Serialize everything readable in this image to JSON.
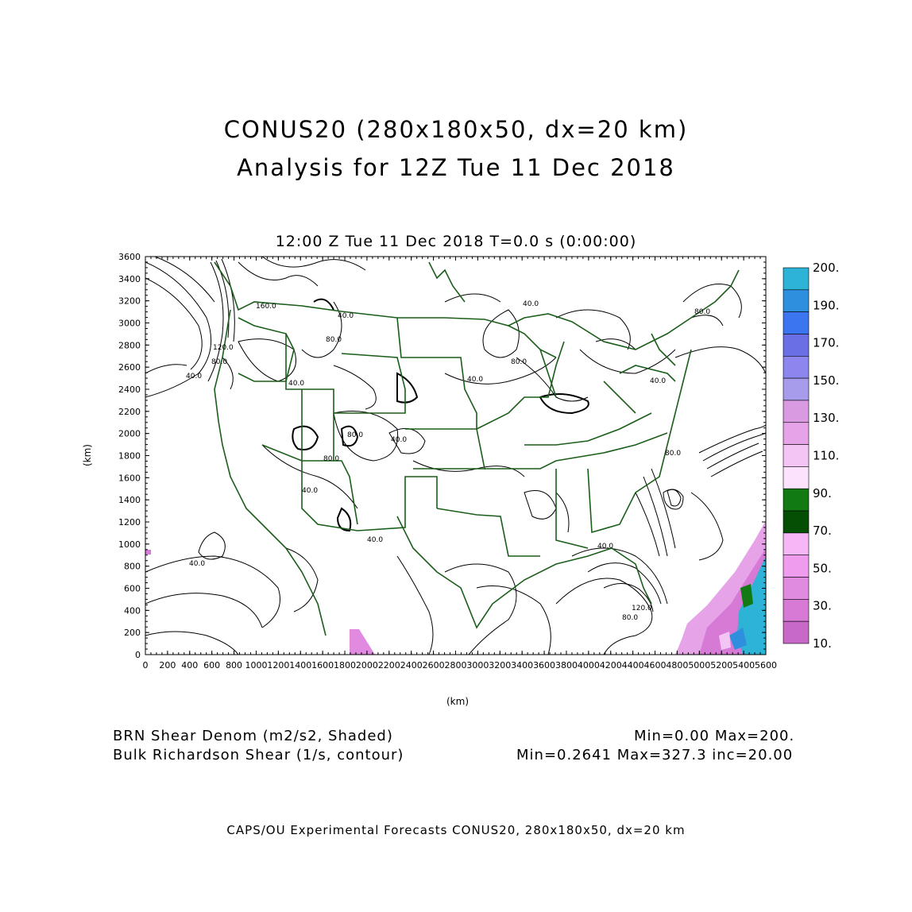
{
  "title_line1": "CONUS20 (280x180x50, dx=20 km)",
  "title_line2": "Analysis for 12Z Tue 11 Dec 2018",
  "subtitle": "12:00 Z Tue 11 Dec 2018    T=0.0 s (0:00:00)",
  "y_axis_label": "(km)",
  "x_axis_label": "(km)",
  "x_ticks": [
    "0",
    "200",
    "400",
    "600",
    "800",
    "1000",
    "1200",
    "1400",
    "1600",
    "1800",
    "2000",
    "2200",
    "2400",
    "2600",
    "2800",
    "3000",
    "3200",
    "3400",
    "3600",
    "3800",
    "4000",
    "4200",
    "4400",
    "4600",
    "4800",
    "5000",
    "5200",
    "5400",
    "5600"
  ],
  "y_ticks": [
    "0",
    "200",
    "400",
    "600",
    "800",
    "1000",
    "1200",
    "1400",
    "1600",
    "1800",
    "2000",
    "2200",
    "2400",
    "2600",
    "2800",
    "3000",
    "3200",
    "3400",
    "3600"
  ],
  "contour_labels": [
    "40.0",
    "40.0",
    "80.0",
    "120.0",
    "160.0",
    "40.0",
    "80.0",
    "40.0",
    "80.0",
    "40.0",
    "80.0",
    "40.0",
    "40.0",
    "80.0",
    "40.0",
    "40.0",
    "120.0",
    "80.0",
    "80.0",
    "40.0",
    "40.0",
    "80.0"
  ],
  "colorbar": {
    "labels": [
      "200.",
      "190.",
      "170.",
      "150.",
      "130.",
      "110.",
      "90.",
      "70.",
      "50.",
      "30.",
      "10."
    ],
    "colors": [
      "#2cb3d6",
      "#2e8fdf",
      "#3b75ef",
      "#6a6fe6",
      "#8c86ee",
      "#a79ceb",
      "#d99ae2",
      "#e6a3e8",
      "#f2c5f5",
      "#fde2fd",
      "#127a12",
      "#054f05",
      "#f7b7f7",
      "#ef9cef",
      "#e08ae0",
      "#d67ad6",
      "#c76ac7"
    ]
  },
  "shaded_field": {
    "name": "BRN Shear Denom (m2/s2, Shaded)",
    "range": "Min=0.00 Max=200."
  },
  "contour_field": {
    "name": "Bulk Richardson Shear (1/s, contour)",
    "range": "Min=0.2641 Max=327.3 inc=20.00"
  },
  "footer": "CAPS/OU Experimental Forecasts  CONUS20, 280x180x50, dx=20 km"
}
